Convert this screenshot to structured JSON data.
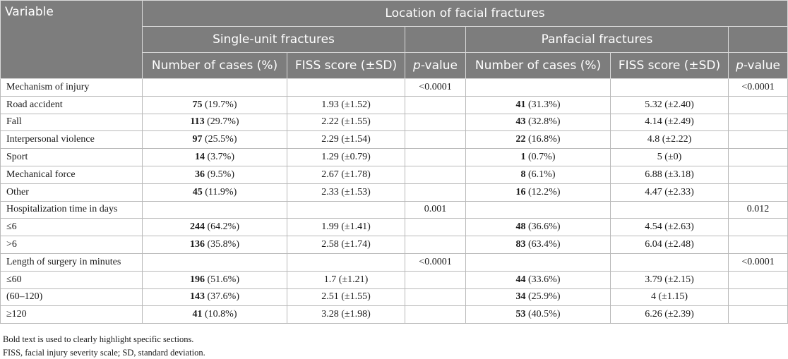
{
  "header": {
    "variable": "Variable",
    "location": "Location of facial fractures",
    "groups": [
      "Single-unit fractures",
      "Panfacial fractures"
    ],
    "col_cases": "Number of cases (%)",
    "col_fiss": "FISS score (±SD)",
    "col_p_italic": "p",
    "col_p_rest": "-value"
  },
  "rows": [
    {
      "label": "Mechanism of injury",
      "s_n": "",
      "s_pct": "",
      "s_fiss": "",
      "s_p": "<0.0001",
      "p_n": "",
      "p_pct": "",
      "p_fiss": "",
      "p_p": "<0.0001"
    },
    {
      "label": "Road accident",
      "s_n": "75",
      "s_pct": "(19.7%)",
      "s_fiss": "1.93 (±1.52)",
      "s_p": "",
      "p_n": "41",
      "p_pct": "(31.3%)",
      "p_fiss": "5.32 (±2.40)",
      "p_p": ""
    },
    {
      "label": "Fall",
      "s_n": "113",
      "s_pct": "(29.7%)",
      "s_fiss": "2.22 (±1.55)",
      "s_p": "",
      "p_n": "43",
      "p_pct": "(32.8%)",
      "p_fiss": "4.14 (±2.49)",
      "p_p": ""
    },
    {
      "label": "Interpersonal violence",
      "s_n": "97",
      "s_pct": "(25.5%)",
      "s_fiss": "2.29 (±1.54)",
      "s_p": "",
      "p_n": "22",
      "p_pct": "(16.8%)",
      "p_fiss": "4.8 (±2.22)",
      "p_p": ""
    },
    {
      "label": "Sport",
      "s_n": "14",
      "s_pct": "(3.7%)",
      "s_fiss": "1.29 (±0.79)",
      "s_p": "",
      "p_n": "1",
      "p_pct": "(0.7%)",
      "p_fiss": "5 (±0)",
      "p_p": ""
    },
    {
      "label": "Mechanical force",
      "s_n": "36",
      "s_pct": "(9.5%)",
      "s_fiss": "2.67 (±1.78)",
      "s_p": "",
      "p_n": "8",
      "p_pct": "(6.1%)",
      "p_fiss": "6.88 (±3.18)",
      "p_p": ""
    },
    {
      "label": "Other",
      "s_n": "45",
      "s_pct": "(11.9%)",
      "s_fiss": "2.33 (±1.53)",
      "s_p": "",
      "p_n": "16",
      "p_pct": "(12.2%)",
      "p_fiss": "4.47 (±2.33)",
      "p_p": ""
    },
    {
      "label": "Hospitalization time in days",
      "s_n": "",
      "s_pct": "",
      "s_fiss": "",
      "s_p": "0.001",
      "p_n": "",
      "p_pct": "",
      "p_fiss": "",
      "p_p": "0.012"
    },
    {
      "label": "≤6",
      "s_n": "244",
      "s_pct": "(64.2%)",
      "s_fiss": "1.99 (±1.41)",
      "s_p": "",
      "p_n": "48",
      "p_pct": "(36.6%)",
      "p_fiss": "4.54 (±2.63)",
      "p_p": ""
    },
    {
      "label": ">6",
      "s_n": "136",
      "s_pct": "(35.8%)",
      "s_fiss": "2.58 (±1.74)",
      "s_p": "",
      "p_n": "83",
      "p_pct": "(63.4%)",
      "p_fiss": "6.04 (±2.48)",
      "p_p": ""
    },
    {
      "label": "Length of surgery in minutes",
      "s_n": "",
      "s_pct": "",
      "s_fiss": "",
      "s_p": "<0.0001",
      "p_n": "",
      "p_pct": "",
      "p_fiss": "",
      "p_p": "<0.0001"
    },
    {
      "label": "≤60",
      "s_n": "196",
      "s_pct": "(51.6%)",
      "s_fiss": "1.7 (±1.21)",
      "s_p": "",
      "p_n": "44",
      "p_pct": "(33.6%)",
      "p_fiss": "3.79 (±2.15)",
      "p_p": ""
    },
    {
      "label": "(60–120)",
      "s_n": "143",
      "s_pct": "(37.6%)",
      "s_fiss": "2.51 (±1.55)",
      "s_p": "",
      "p_n": "34",
      "p_pct": "(25.9%)",
      "p_fiss": "4 (±1.15)",
      "p_p": ""
    },
    {
      "label": "≥120",
      "s_n": "41",
      "s_pct": "(10.8%)",
      "s_fiss": "3.28 (±1.98)",
      "s_p": "",
      "p_n": "53",
      "p_pct": "(40.5%)",
      "p_fiss": "6.26 (±2.39)",
      "p_p": ""
    }
  ],
  "footnotes": [
    "Bold text is used to clearly highlight specific sections.",
    "FISS, facial injury severity scale; SD, standard deviation."
  ]
}
